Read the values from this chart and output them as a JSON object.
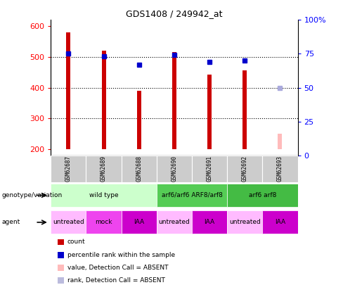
{
  "title": "GDS1408 / 249942_at",
  "samples": [
    "GSM62687",
    "GSM62689",
    "GSM62688",
    "GSM62690",
    "GSM62691",
    "GSM62692",
    "GSM62693"
  ],
  "bar_bottom": 200,
  "count_values": [
    580,
    520,
    390,
    515,
    443,
    455,
    250
  ],
  "count_colors": [
    "#cc0000",
    "#cc0000",
    "#cc0000",
    "#cc0000",
    "#cc0000",
    "#cc0000",
    "#ffbbbb"
  ],
  "percentile_values": [
    75,
    73,
    67,
    74,
    69,
    70,
    50
  ],
  "percentile_colors": [
    "#0000cc",
    "#0000cc",
    "#0000cc",
    "#0000cc",
    "#0000cc",
    "#0000cc",
    "#aaaadd"
  ],
  "percentile_absent": [
    false,
    false,
    false,
    false,
    false,
    false,
    true
  ],
  "ylim_left": [
    180,
    620
  ],
  "ylim_right": [
    0,
    100
  ],
  "yticks_left": [
    200,
    300,
    400,
    500,
    600
  ],
  "ytick_labels_left": [
    "200",
    "300",
    "400",
    "500",
    "600"
  ],
  "yticks_right": [
    0,
    25,
    50,
    75,
    100
  ],
  "ytick_labels_right": [
    "0",
    "25",
    "50",
    "75",
    "100%"
  ],
  "gridlines_at": [
    300,
    400,
    500
  ],
  "genotype_groups": [
    {
      "label": "wild type",
      "start": 0,
      "end": 3,
      "color": "#ccffcc"
    },
    {
      "label": "arf6/arf6 ARF8/arf8",
      "start": 3,
      "end": 5,
      "color": "#55cc55"
    },
    {
      "label": "arf6 arf8",
      "start": 5,
      "end": 7,
      "color": "#44bb44"
    }
  ],
  "agent_groups": [
    {
      "label": "untreated",
      "start": 0,
      "end": 1,
      "color": "#ffbbff"
    },
    {
      "label": "mock",
      "start": 1,
      "end": 2,
      "color": "#ee44ee"
    },
    {
      "label": "IAA",
      "start": 2,
      "end": 3,
      "color": "#cc00cc"
    },
    {
      "label": "untreated",
      "start": 3,
      "end": 4,
      "color": "#ffbbff"
    },
    {
      "label": "IAA",
      "start": 4,
      "end": 5,
      "color": "#cc00cc"
    },
    {
      "label": "untreated",
      "start": 5,
      "end": 6,
      "color": "#ffbbff"
    },
    {
      "label": "IAA",
      "start": 6,
      "end": 7,
      "color": "#cc00cc"
    }
  ],
  "legend_items": [
    {
      "label": "count",
      "color": "#cc0000"
    },
    {
      "label": "percentile rank within the sample",
      "color": "#0000cc"
    },
    {
      "label": "value, Detection Call = ABSENT",
      "color": "#ffbbbb"
    },
    {
      "label": "rank, Detection Call = ABSENT",
      "color": "#bbbbdd"
    }
  ],
  "bar_width": 0.12,
  "marker_size": 5,
  "fig_width": 4.88,
  "fig_height": 4.05,
  "dpi": 100
}
